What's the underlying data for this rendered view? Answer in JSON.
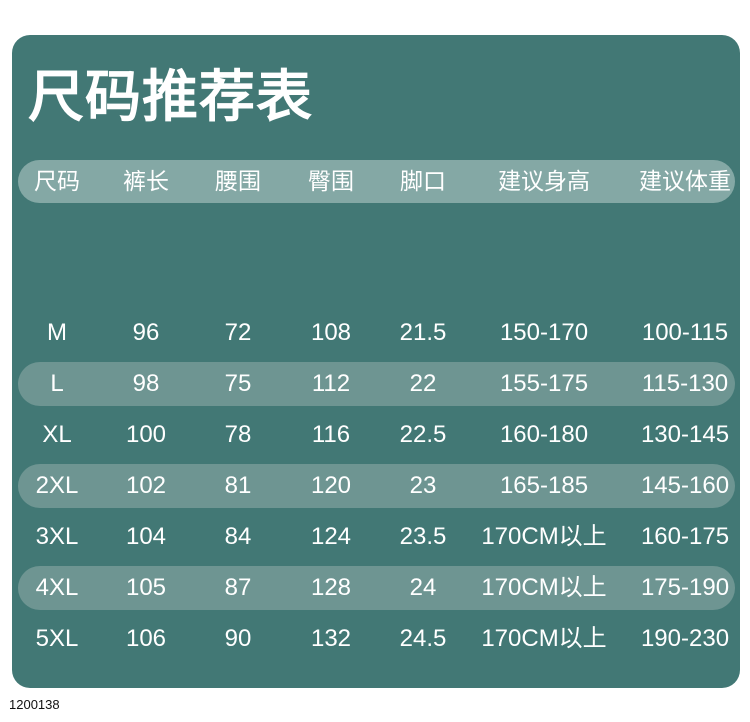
{
  "title": "尺码推荐表",
  "headers": [
    "尺码",
    "裤长",
    "腰围",
    "臀围",
    "脚口",
    "建议身高",
    "建议体重"
  ],
  "rows": [
    [
      "M",
      "96",
      "72",
      "108",
      "21.5",
      "150-170",
      "100-115"
    ],
    [
      "L",
      "98",
      "75",
      "112",
      "22",
      "155-175",
      "115-130"
    ],
    [
      "XL",
      "100",
      "78",
      "116",
      "22.5",
      "160-180",
      "130-145"
    ],
    [
      "2XL",
      "102",
      "81",
      "120",
      "23",
      "165-185",
      "145-160"
    ],
    [
      "3XL",
      "104",
      "84",
      "124",
      "23.5",
      "170CM以上",
      "160-175"
    ],
    [
      "4XL",
      "105",
      "87",
      "128",
      "24",
      "170CM以上",
      "175-190"
    ],
    [
      "5XL",
      "106",
      "90",
      "132",
      "24.5",
      "170CM以上",
      "190-230"
    ]
  ],
  "footer_code": "1200138",
  "colors": {
    "card": "#427875",
    "header_band": "#84a8a5",
    "stripe": "#6e9592",
    "text": "#ffffff"
  }
}
